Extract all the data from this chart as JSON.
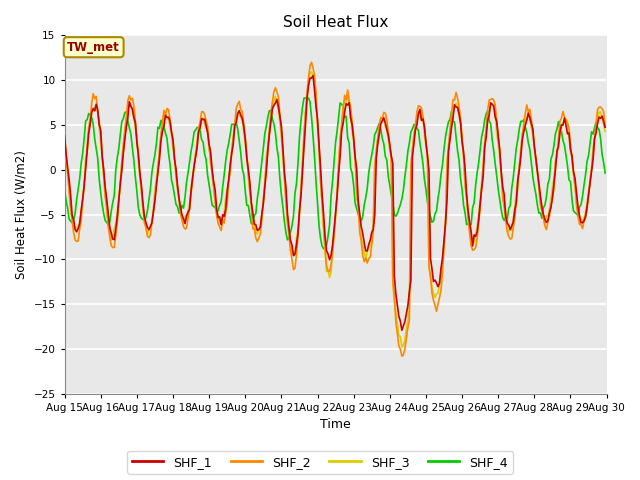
{
  "title": "Soil Heat Flux",
  "xlabel": "Time",
  "ylabel": "Soil Heat Flux (W/m2)",
  "ylim": [
    -25,
    15
  ],
  "yticks": [
    -25,
    -20,
    -15,
    -10,
    -5,
    0,
    5,
    10,
    15
  ],
  "x_tick_labels": [
    "Aug 15",
    "Aug 16",
    "Aug 17",
    "Aug 18",
    "Aug 19",
    "Aug 20",
    "Aug 21",
    "Aug 22",
    "Aug 23",
    "Aug 24",
    "Aug 25",
    "Aug 26",
    "Aug 27",
    "Aug 28",
    "Aug 29",
    "Aug 30"
  ],
  "colors": {
    "SHF_1": "#cc0000",
    "SHF_2": "#ff8800",
    "SHF_3": "#ddcc00",
    "SHF_4": "#00cc00"
  },
  "legend_label": "TW_met",
  "plot_bg_color": "#e8e8e8",
  "fig_bg_color": "#ffffff",
  "linewidth": 1.2,
  "annotation_box_facecolor": "#ffffcc",
  "annotation_text_color": "#990000",
  "annotation_edge_color": "#aa8800"
}
